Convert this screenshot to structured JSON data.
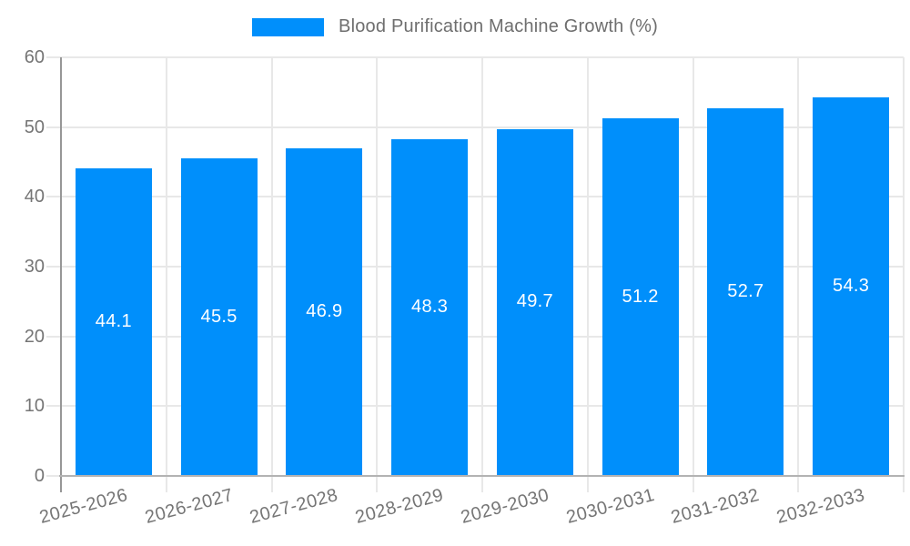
{
  "chart": {
    "legend": {
      "label": "Blood Purification Machine Growth (%)"
    }
  },
  "chart_data": {
    "type": "bar",
    "title": "Blood Purification Machine Growth (%)",
    "legend": {
      "position": "top",
      "entries": [
        "Blood Purification Machine Growth (%)"
      ]
    },
    "categories": [
      "2025-2026",
      "2026-2027",
      "2027-2028",
      "2028-2029",
      "2029-2030",
      "2030-2031",
      "2031-2032",
      "2032-2033"
    ],
    "values": [
      44.1,
      45.5,
      46.9,
      48.3,
      49.7,
      51.2,
      52.7,
      54.3
    ],
    "xlabel": "",
    "ylabel": "",
    "ylim": [
      0,
      60
    ],
    "yticks": [
      0,
      10,
      20,
      30,
      40,
      50,
      60
    ],
    "grid": true,
    "value_labels": "inside-center",
    "x_label_rotation_deg": -15,
    "colors": {
      "bar": "#008FFB",
      "value_label": "#ffffff",
      "grid": "#e8e8e8",
      "y_axis_line": "#979797",
      "x_axis_line": "#b3b3b3",
      "tick_label": "#757575",
      "legend_text": "#6e6e6e"
    }
  }
}
